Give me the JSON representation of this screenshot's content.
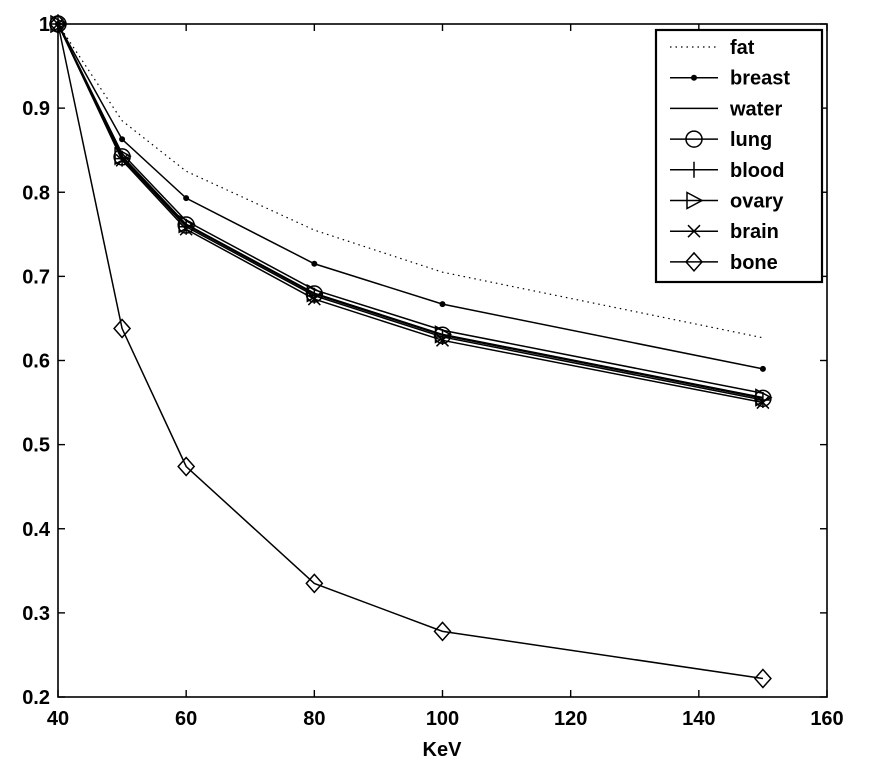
{
  "chart_data": {
    "type": "line",
    "title": "",
    "xlabel": "KeV",
    "ylabel": "",
    "xlim": [
      40,
      160
    ],
    "ylim": [
      0.2,
      1.0
    ],
    "xticks": [
      40,
      60,
      80,
      100,
      120,
      140,
      160
    ],
    "xtick_labels": [
      "40",
      "60",
      "80",
      "100",
      "120",
      "140",
      "160"
    ],
    "yticks": [
      0.2,
      0.3,
      0.4,
      0.5,
      0.6,
      0.7,
      0.8,
      0.9,
      1.0
    ],
    "ytick_labels": [
      "0.2",
      "0.3",
      "0.4",
      "0.5",
      "0.6",
      "0.7",
      "0.8",
      "0.9",
      "1"
    ],
    "grid": false,
    "legend_position": "top-right",
    "x": [
      40,
      50,
      60,
      80,
      100,
      150
    ],
    "series": [
      {
        "name": "fat",
        "marker": "none",
        "line": "dotted",
        "values": [
          1.0,
          0.885,
          0.825,
          0.755,
          0.705,
          0.627
        ]
      },
      {
        "name": "breast",
        "marker": "dot",
        "line": "solid",
        "values": [
          1.0,
          0.863,
          0.793,
          0.715,
          0.667,
          0.59
        ]
      },
      {
        "name": "water",
        "marker": "none",
        "line": "solid",
        "values": [
          1.0,
          0.846,
          0.766,
          0.684,
          0.636,
          0.561
        ]
      },
      {
        "name": "lung",
        "marker": "circle",
        "line": "solid",
        "values": [
          1.0,
          0.842,
          0.761,
          0.679,
          0.63,
          0.555
        ]
      },
      {
        "name": "blood",
        "marker": "plus",
        "line": "solid",
        "values": [
          1.0,
          0.84,
          0.759,
          0.677,
          0.628,
          0.553
        ]
      },
      {
        "name": "ovary",
        "marker": "triangle-right",
        "line": "solid",
        "values": [
          1.0,
          0.843,
          0.762,
          0.68,
          0.631,
          0.556
        ]
      },
      {
        "name": "brain",
        "marker": "x",
        "line": "solid",
        "values": [
          1.0,
          0.838,
          0.756,
          0.673,
          0.624,
          0.55
        ]
      },
      {
        "name": "bone",
        "marker": "diamond",
        "line": "solid",
        "values": [
          1.0,
          0.638,
          0.474,
          0.335,
          0.278,
          0.222
        ]
      }
    ]
  }
}
